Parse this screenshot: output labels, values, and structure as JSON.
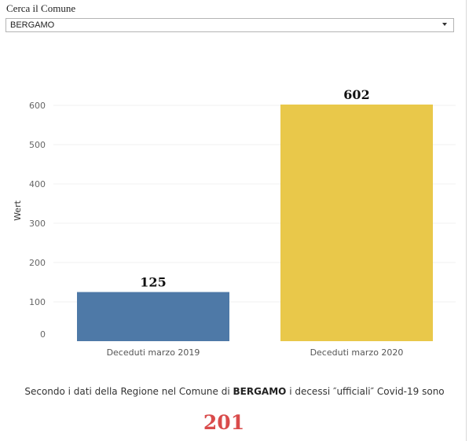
{
  "filter": {
    "label": "Cerca il Comune",
    "selected": "BERGAMO"
  },
  "chart_data": {
    "type": "bar",
    "categories": [
      "Deceduti marzo 2019",
      "Deceduti marzo 2020"
    ],
    "values": [
      125,
      602
    ],
    "data_labels": [
      "125",
      "602"
    ],
    "colors": [
      "#4e79a7",
      "#e9c84a"
    ],
    "ylabel": "Wert",
    "xlabel": "",
    "ylim": [
      0,
      620
    ],
    "yticks": [
      0,
      100,
      200,
      300,
      400,
      500,
      600
    ],
    "grid": true
  },
  "caption": {
    "prefix": "Secondo i dati della Regione nel Comune di",
    "comune": "BERGAMO",
    "suffix": "i decessi ″ufficiali″ Covid-19 sono"
  },
  "total": "201",
  "colors": {
    "total": "#d94b4b",
    "axis_text": "#666666"
  }
}
